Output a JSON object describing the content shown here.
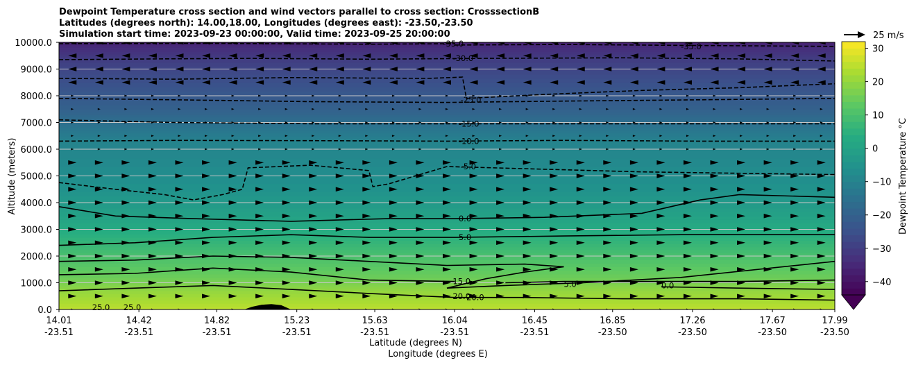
{
  "chart_data": {
    "type": "contour",
    "title_lines": [
      "Dewpoint Temperature cross section and wind vectors parallel to cross section: CrosssectionB",
      "Latitudes (degrees north): 14.00,18.00, Longitudes (degrees east): -23.50,-23.50",
      "Simulation start time: 2023-09-23 00:00:00, Valid time: 2023-09-25 20:00:00"
    ],
    "ylabel": "Altitude (meters)",
    "xlabel_line1": "Latitude (degrees N)",
    "xlabel_line2": "Longitude (degrees E)",
    "ylim": [
      0,
      10000
    ],
    "xlim": [
      14.01,
      17.99
    ],
    "y_ticks": [
      {
        "value": 0,
        "label": "0.0"
      },
      {
        "value": 1000,
        "label": "1000.0"
      },
      {
        "value": 2000,
        "label": "2000.0"
      },
      {
        "value": 3000,
        "label": "3000.0"
      },
      {
        "value": 4000,
        "label": "4000.0"
      },
      {
        "value": 5000,
        "label": "5000.0"
      },
      {
        "value": 6000,
        "label": "6000.0"
      },
      {
        "value": 7000,
        "label": "7000.0"
      },
      {
        "value": 8000,
        "label": "8000.0"
      },
      {
        "value": 9000,
        "label": "9000.0"
      },
      {
        "value": 10000,
        "label": "10000.0"
      }
    ],
    "x_ticks": [
      {
        "lat": 14.01,
        "lat_label": "14.01",
        "lon_label": "-23.51"
      },
      {
        "lat": 14.42,
        "lat_label": "14.42",
        "lon_label": "-23.51"
      },
      {
        "lat": 14.82,
        "lat_label": "14.82",
        "lon_label": "-23.51"
      },
      {
        "lat": 15.23,
        "lat_label": "15.23",
        "lon_label": "-23.51"
      },
      {
        "lat": 15.63,
        "lat_label": "15.63",
        "lon_label": "-23.51"
      },
      {
        "lat": 16.04,
        "lat_label": "16.04",
        "lon_label": "-23.51"
      },
      {
        "lat": 16.45,
        "lat_label": "16.45",
        "lon_label": "-23.51"
      },
      {
        "lat": 16.85,
        "lat_label": "16.85",
        "lon_label": "-23.50"
      },
      {
        "lat": 17.26,
        "lat_label": "17.26",
        "lon_label": "-23.50"
      },
      {
        "lat": 17.67,
        "lat_label": "17.67",
        "lon_label": "-23.50"
      },
      {
        "lat": 17.99,
        "lat_label": "17.99",
        "lon_label": "-23.50"
      }
    ],
    "grid": "horizontal",
    "colorbar": {
      "label": "Dewpoint Temperature $^\\circ$C",
      "label_display": "Dewpoint Temperature °C",
      "min": -44,
      "max": 32,
      "extend": "min",
      "ticks": [
        {
          "value": 30,
          "label": "30"
        },
        {
          "value": 20,
          "label": "20"
        },
        {
          "value": 10,
          "label": "10"
        },
        {
          "value": 0,
          "label": "0"
        },
        {
          "value": -10,
          "label": "−10"
        },
        {
          "value": -20,
          "label": "−20"
        },
        {
          "value": -30,
          "label": "−30"
        },
        {
          "value": -40,
          "label": "−40"
        }
      ]
    },
    "quiver_key": {
      "label": "25 m/s",
      "speed": 25
    },
    "wind_components": {
      "lower_dark_arrows": [
        "2.0 (1000 m)",
        "3.0 (2000 m)",
        "3.6 (3000 m)",
        "3.6 (4000 m)",
        "2.8 (5000 m)"
      ],
      "upper_dark_arrows": [
        "-2.6 (8600 m)",
        "-2.6 (9300 m)",
        "-2.6 (9800 m)"
      ]
    },
    "dewpoint_profile": [
      {
        "altitude": 0,
        "dewpoint": 25
      },
      {
        "altitude": 700,
        "dewpoint": 20
      },
      {
        "altitude": 1200,
        "dewpoint": 15
      },
      {
        "altitude": 2000,
        "dewpoint": 10
      },
      {
        "altitude": 2700,
        "dewpoint": 5
      },
      {
        "altitude": 3500,
        "dewpoint": 0
      },
      {
        "altitude": 4400,
        "dewpoint": -5
      },
      {
        "altitude": 6300,
        "dewpoint": -10
      },
      {
        "altitude": 6900,
        "dewpoint": -15
      },
      {
        "altitude": 7500,
        "dewpoint": -20
      },
      {
        "altitude": 8500,
        "dewpoint": -25
      },
      {
        "altitude": 9400,
        "dewpoint": -30
      },
      {
        "altitude": 9900,
        "dewpoint": -35
      },
      {
        "altitude": 10000,
        "dewpoint": -37
      }
    ],
    "contours": [
      {
        "level": -35,
        "label": "-35.0",
        "dashed": true,
        "points": [
          [
            16.04,
            9900
          ],
          [
            16.6,
            9920
          ],
          [
            17.3,
            9880
          ],
          [
            17.99,
            9850
          ]
        ],
        "label_at": [
          17.2,
          9850
        ]
      },
      {
        "level": -35,
        "label": "-35.0",
        "dashed": true,
        "points": [
          [
            14.01,
            9950
          ],
          [
            14.8,
            9960
          ],
          [
            15.6,
            9930
          ],
          [
            16.04,
            9950
          ]
        ],
        "label_at": [
          15.98,
          9950
        ]
      },
      {
        "level": -30,
        "label": "-30.0",
        "dashed": true,
        "points": [
          [
            14.01,
            9350
          ],
          [
            14.5,
            9380
          ],
          [
            15.0,
            9400
          ],
          [
            15.6,
            9370
          ],
          [
            16.2,
            9400
          ],
          [
            16.9,
            9420
          ],
          [
            17.5,
            9380
          ],
          [
            17.99,
            9300
          ]
        ],
        "label_at": [
          16.03,
          9400
        ]
      },
      {
        "level": -25,
        "label": "-25.0",
        "dashed": true,
        "points": [
          [
            14.01,
            8650
          ],
          [
            14.6,
            8620
          ],
          [
            15.2,
            8680
          ],
          [
            15.9,
            8650
          ],
          [
            16.08,
            8700
          ],
          [
            16.1,
            7900
          ],
          [
            16.5,
            8050
          ],
          [
            17.0,
            8200
          ],
          [
            17.5,
            8300
          ],
          [
            17.99,
            8450
          ]
        ],
        "label_at": [
          16.07,
          7850
        ]
      },
      {
        "level": -20,
        "label": "-20.0",
        "dashed": true,
        "points": [
          [
            14.01,
            7900
          ],
          [
            14.6,
            7850
          ],
          [
            15.3,
            7780
          ],
          [
            16.0,
            7750
          ],
          [
            16.6,
            7800
          ],
          [
            17.3,
            7850
          ],
          [
            17.99,
            7900
          ]
        ],
        "label_at": null
      },
      {
        "level": -15,
        "label": "-15.0",
        "dashed": true,
        "points": [
          [
            14.01,
            7100
          ],
          [
            14.6,
            7000
          ],
          [
            15.3,
            6950
          ],
          [
            16.0,
            6950
          ],
          [
            16.6,
            6950
          ],
          [
            17.3,
            6950
          ],
          [
            17.99,
            6950
          ]
        ],
        "label_at": [
          16.06,
          6950
        ]
      },
      {
        "level": -10,
        "label": "-10.0",
        "dashed": true,
        "points": [
          [
            14.01,
            6300
          ],
          [
            14.6,
            6330
          ],
          [
            15.3,
            6320
          ],
          [
            16.0,
            6300
          ],
          [
            16.6,
            6330
          ],
          [
            17.3,
            6300
          ],
          [
            17.99,
            6300
          ]
        ],
        "label_at": [
          16.06,
          6300
        ]
      },
      {
        "level": -5,
        "label": "-5.0",
        "dashed": true,
        "points": [
          [
            14.01,
            4750
          ],
          [
            14.3,
            4500
          ],
          [
            14.55,
            4300
          ],
          [
            14.7,
            4100
          ],
          [
            14.85,
            4300
          ],
          [
            14.95,
            4500
          ],
          [
            14.98,
            5300
          ],
          [
            15.3,
            5400
          ],
          [
            15.6,
            5200
          ],
          [
            15.62,
            4600
          ],
          [
            15.7,
            4700
          ],
          [
            16.0,
            5350
          ],
          [
            16.5,
            5250
          ],
          [
            17.0,
            5150
          ],
          [
            17.5,
            5100
          ],
          [
            17.99,
            5050
          ]
        ],
        "label_at": [
          16.07,
          5350
        ]
      },
      {
        "level": 0,
        "label": "0.0",
        "dashed": false,
        "points": [
          [
            14.01,
            3850
          ],
          [
            14.3,
            3500
          ],
          [
            14.7,
            3400
          ],
          [
            15.2,
            3300
          ],
          [
            15.7,
            3400
          ],
          [
            16.04,
            3400
          ],
          [
            16.5,
            3450
          ],
          [
            17.0,
            3600
          ],
          [
            17.3,
            4100
          ],
          [
            17.5,
            4300
          ],
          [
            17.99,
            4200
          ]
        ],
        "label_at": [
          16.06,
          3400
        ]
      },
      {
        "level": 5,
        "label": "5.0",
        "dashed": false,
        "points": [
          [
            14.01,
            2400
          ],
          [
            14.4,
            2500
          ],
          [
            14.8,
            2700
          ],
          [
            15.2,
            2800
          ],
          [
            15.6,
            2700
          ],
          [
            16.04,
            2700
          ],
          [
            16.6,
            2750
          ],
          [
            17.2,
            2800
          ],
          [
            17.99,
            2800
          ]
        ],
        "label_at": [
          16.06,
          2700
        ]
      },
      {
        "level": 10,
        "label": "10.0",
        "dashed": false,
        "points": [
          [
            14.01,
            1800
          ],
          [
            14.4,
            1850
          ],
          [
            14.8,
            2000
          ],
          [
            15.2,
            1950
          ],
          [
            15.6,
            1800
          ],
          [
            16.0,
            1650
          ],
          [
            16.4,
            1700
          ],
          [
            16.6,
            1600
          ],
          [
            16.4,
            1400
          ],
          [
            16.2,
            1150
          ],
          [
            16.0,
            800
          ],
          [
            16.3,
            900
          ],
          [
            16.7,
            1000
          ],
          [
            17.2,
            1200
          ],
          [
            17.99,
            1800
          ]
        ],
        "label_at": null
      },
      {
        "level": 15,
        "label": "15.0",
        "dashed": false,
        "points": [
          [
            14.01,
            1300
          ],
          [
            14.4,
            1350
          ],
          [
            14.8,
            1550
          ],
          [
            15.2,
            1400
          ],
          [
            15.6,
            1100
          ],
          [
            16.04,
            1050
          ]
        ],
        "label_at": [
          16.03,
          1050
        ]
      },
      {
        "level": 20,
        "label": "20.0",
        "dashed": false,
        "points": [
          [
            14.01,
            700
          ],
          [
            14.4,
            800
          ],
          [
            14.8,
            900
          ],
          [
            15.2,
            750
          ],
          [
            15.6,
            600
          ],
          [
            16.04,
            450
          ],
          [
            16.4,
            450
          ],
          [
            16.9,
            400
          ],
          [
            17.5,
            400
          ],
          [
            17.99,
            350
          ]
        ],
        "label_at": [
          16.03,
          500
        ]
      },
      {
        "level": 25,
        "label": "25.0",
        "dashed": false,
        "points": [],
        "label_at": [
          14.18,
          80
        ]
      },
      {
        "level": 25,
        "label": "25.0",
        "dashed": false,
        "points": [],
        "label_at": [
          14.34,
          80
        ]
      },
      {
        "level": 20,
        "label": "20.0",
        "dashed": false,
        "points": [
          [
            16.3,
            1000
          ],
          [
            16.6,
            1050
          ],
          [
            17.0,
            1050
          ],
          [
            17.5,
            1050
          ],
          [
            17.99,
            1100
          ]
        ],
        "label_at": [
          16.1,
          450
        ]
      },
      {
        "level": 5,
        "label": "5.0",
        "dashed": false,
        "points": [],
        "label_at": [
          16.6,
          950
        ]
      },
      {
        "level": 0,
        "label": "0.0",
        "dashed": false,
        "points": [
          [
            17.1,
            850
          ],
          [
            17.5,
            800
          ],
          [
            17.99,
            750
          ]
        ],
        "label_at": [
          17.1,
          900
        ]
      }
    ],
    "terrain": [
      [
        14.96,
        0
      ],
      [
        15.0,
        100
      ],
      [
        15.05,
        180
      ],
      [
        15.1,
        200
      ],
      [
        15.15,
        160
      ],
      [
        15.2,
        0
      ]
    ]
  }
}
